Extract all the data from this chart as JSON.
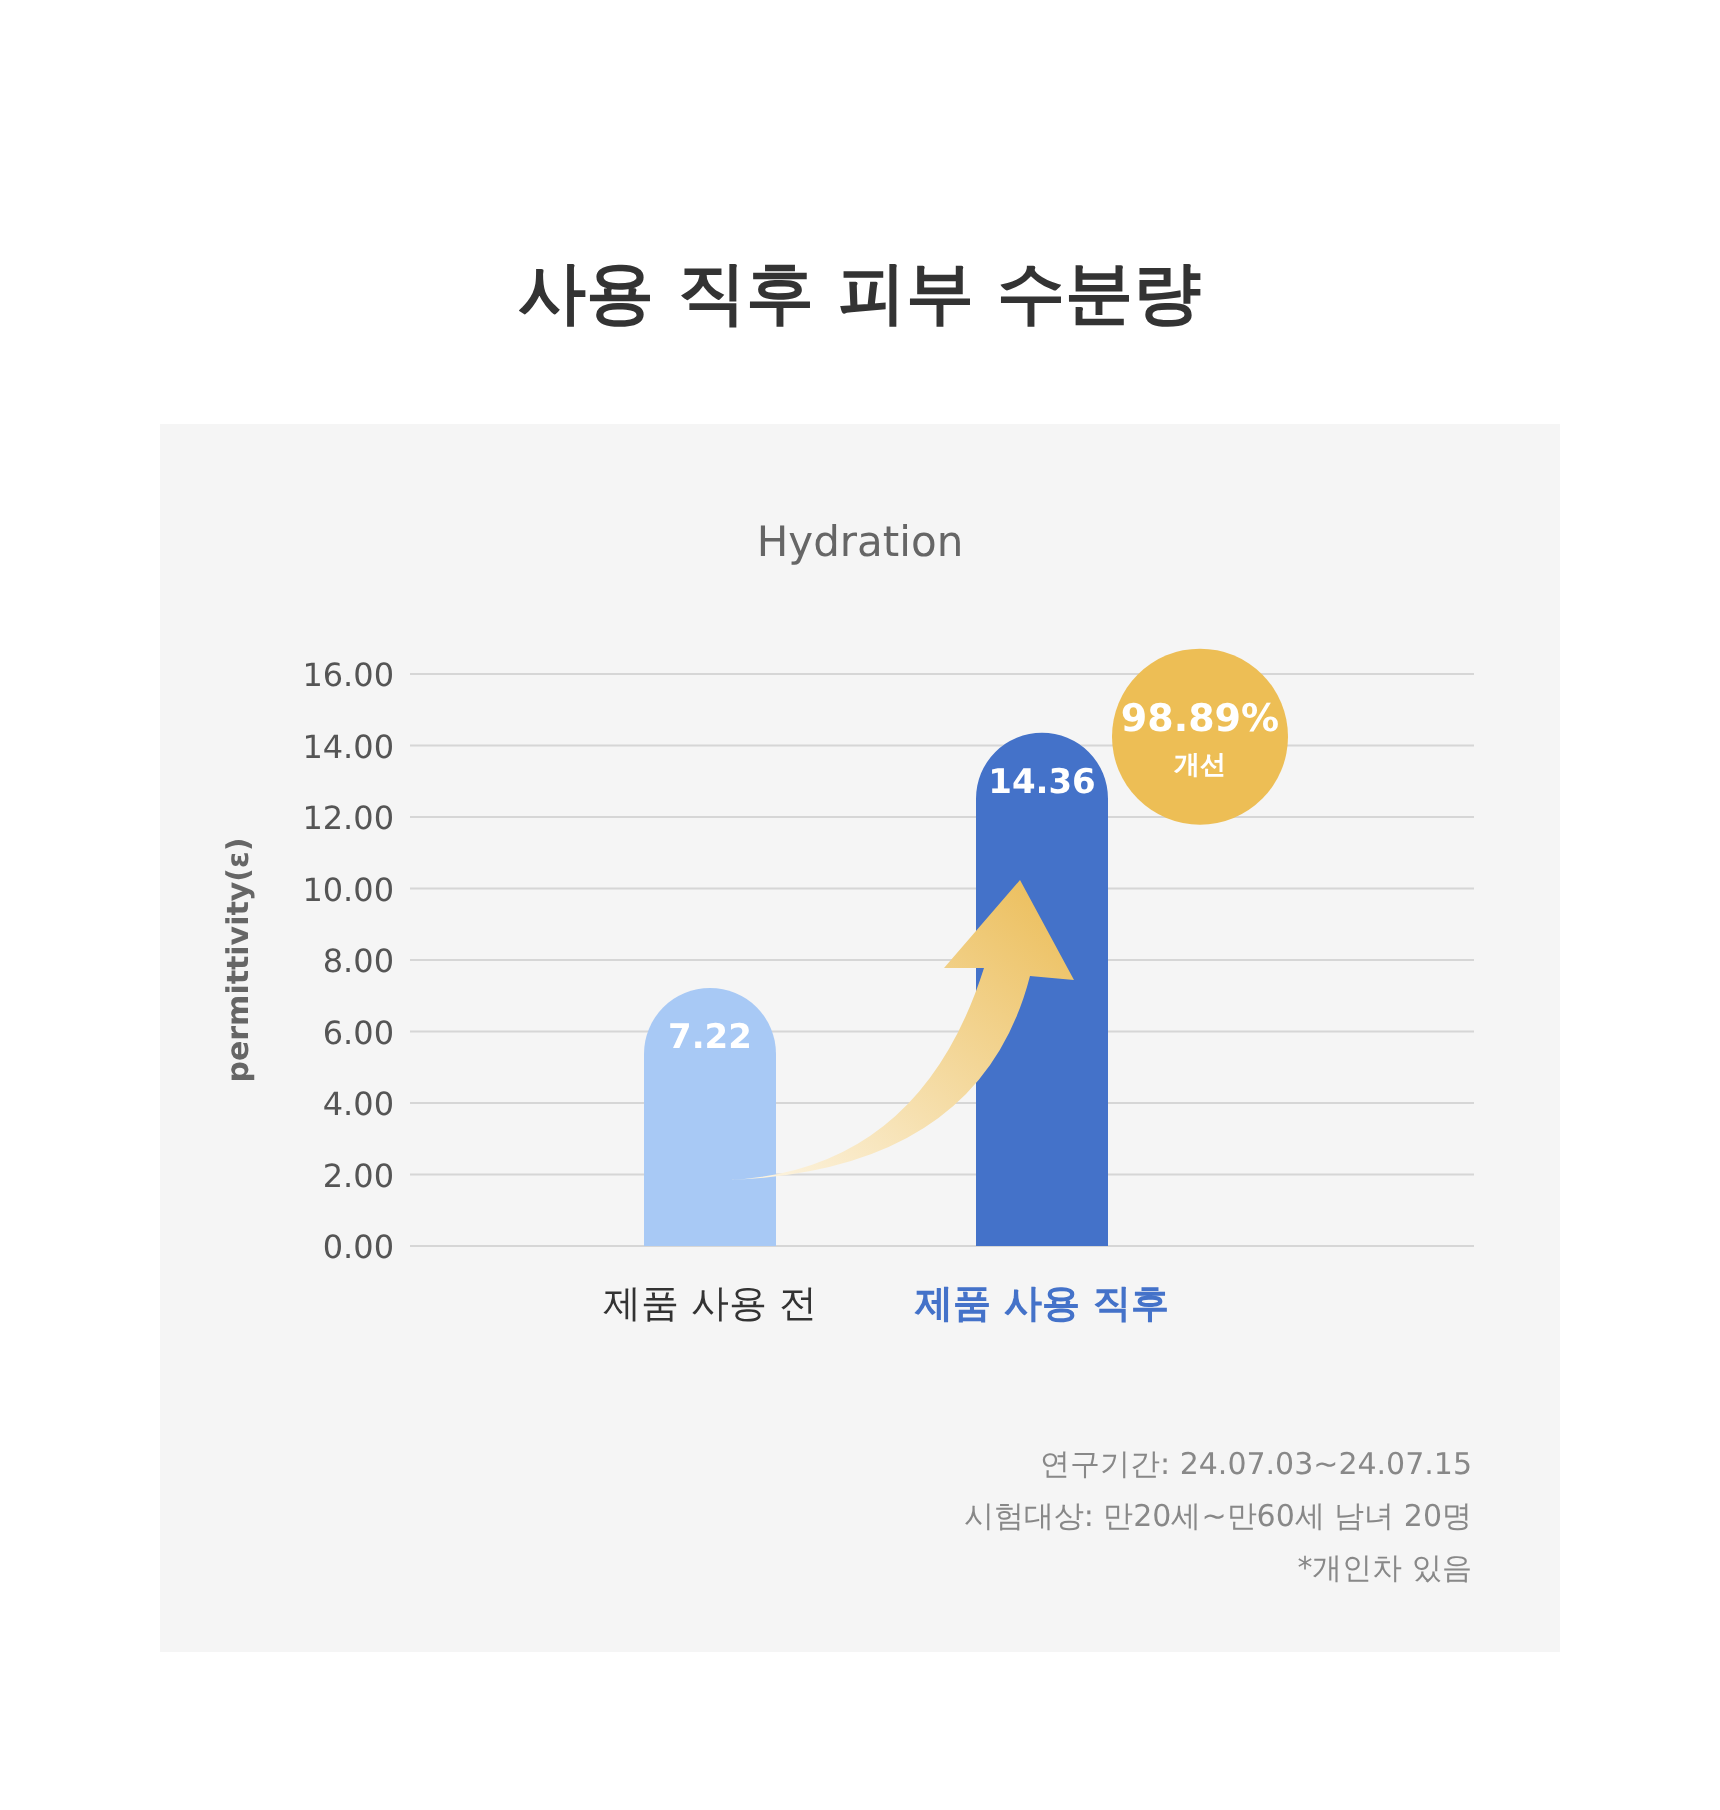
{
  "chart_data": {
    "type": "bar",
    "title": "사용 직후 피부 수분량",
    "subtitle": "Hydration",
    "ylabel": "permittivity(ε)",
    "categories": [
      "제품 사용 전",
      "제품 사용 직후"
    ],
    "values": [
      7.22,
      14.36
    ],
    "colors": [
      "#a8c9f5",
      "#4472c9"
    ],
    "ylim": [
      0,
      16
    ],
    "yticks": [
      {
        "value": 0,
        "label": "0.00"
      },
      {
        "value": 2,
        "label": "2.00"
      },
      {
        "value": 4,
        "label": "4.00"
      },
      {
        "value": 6,
        "label": "6.00"
      },
      {
        "value": 8,
        "label": "8.00"
      },
      {
        "value": 10,
        "label": "10.00"
      },
      {
        "value": 12,
        "label": "12.00"
      },
      {
        "value": 14,
        "label": "14.00"
      },
      {
        "value": 16,
        "label": "16.00"
      }
    ],
    "grid": "y",
    "data_labels": true,
    "annotations": [
      "98.89%",
      "개선",
      "연구기간: 24.07.03~24.07.15",
      "시험대상: 만20세~만60세 남녀 20명",
      "*개인차 있음"
    ]
  }
}
